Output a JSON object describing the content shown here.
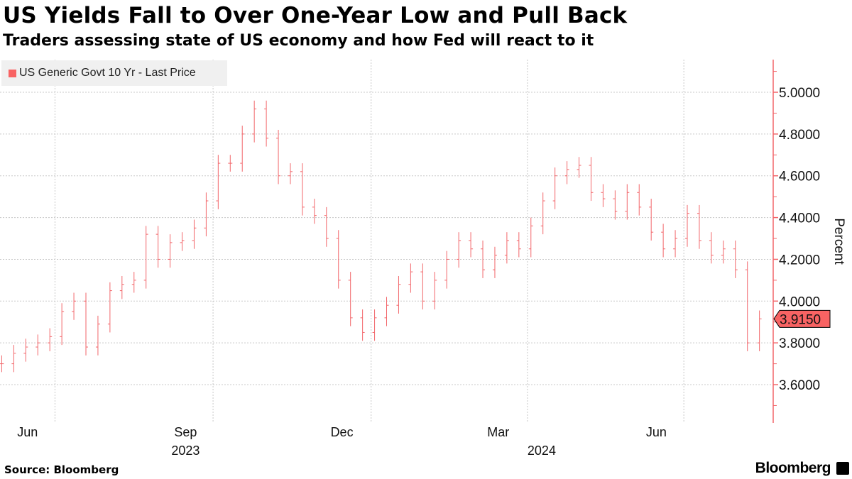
{
  "header": {
    "title": "US Yields Fall to Over One-Year Low and Pull Back",
    "subtitle": "Traders assessing state of US economy and how Fed will react to it"
  },
  "footer": {
    "source": "Source: Bloomberg",
    "brand": "Bloomberg"
  },
  "colors": {
    "series": "#f2666a",
    "last_price_badge": "#f86363",
    "grid": "#c8c8c8"
  },
  "chart_data": {
    "type": "bar",
    "style": "OHLC price bars",
    "title": "US Yields Fall to Over One-Year Low and Pull Back",
    "ylabel": "Percent",
    "ylim": [
      3.45,
      5.15
    ],
    "y_axis_side": "right",
    "yticks": [
      "5.0000",
      "4.8000",
      "4.6000",
      "4.4000",
      "4.2000",
      "4.0000",
      "3.8000",
      "3.6000"
    ],
    "xticks": [
      {
        "label": "Jun",
        "date": "2023-06-15"
      },
      {
        "label": "Sep",
        "date": "2023-09-15"
      },
      {
        "label": "Dec",
        "date": "2023-12-15"
      },
      {
        "label": "Mar",
        "date": "2024-03-15"
      },
      {
        "label": "Jun",
        "date": "2024-06-15"
      }
    ],
    "year_labels": [
      {
        "label": "2023",
        "date": "2023-09-15"
      },
      {
        "label": "2024",
        "date": "2024-04-01"
      }
    ],
    "grid": true,
    "legend": {
      "position": "top-left",
      "entries": [
        "US Generic Govt 10 Yr - Last Price"
      ]
    },
    "last_value_label": "3.9150",
    "series": [
      {
        "name": "US Generic Govt 10 Yr - Last Price",
        "dates": [
          "2023-05-31",
          "2023-06-07",
          "2023-06-14",
          "2023-06-21",
          "2023-06-28",
          "2023-07-05",
          "2023-07-12",
          "2023-07-19",
          "2023-07-26",
          "2023-08-02",
          "2023-08-09",
          "2023-08-16",
          "2023-08-23",
          "2023-08-30",
          "2023-09-06",
          "2023-09-13",
          "2023-09-20",
          "2023-09-27",
          "2023-10-04",
          "2023-10-11",
          "2023-10-18",
          "2023-10-25",
          "2023-11-01",
          "2023-11-08",
          "2023-11-15",
          "2023-11-22",
          "2023-11-29",
          "2023-12-06",
          "2023-12-13",
          "2023-12-20",
          "2023-12-27",
          "2024-01-03",
          "2024-01-10",
          "2024-01-17",
          "2024-01-24",
          "2024-01-31",
          "2024-02-07",
          "2024-02-14",
          "2024-02-21",
          "2024-02-28",
          "2024-03-06",
          "2024-03-13",
          "2024-03-20",
          "2024-03-27",
          "2024-04-03",
          "2024-04-10",
          "2024-04-17",
          "2024-04-24",
          "2024-05-01",
          "2024-05-08",
          "2024-05-15",
          "2024-05-22",
          "2024-05-29",
          "2024-06-05",
          "2024-06-12",
          "2024-06-19",
          "2024-06-26",
          "2024-07-03",
          "2024-07-10",
          "2024-07-17",
          "2024-07-24",
          "2024-07-31",
          "2024-08-07",
          "2024-08-14"
        ],
        "values": [
          3.7,
          3.75,
          3.78,
          3.8,
          3.83,
          3.95,
          4.0,
          3.78,
          3.89,
          4.05,
          4.08,
          4.1,
          4.32,
          4.2,
          4.28,
          4.29,
          4.35,
          4.48,
          4.66,
          4.66,
          4.8,
          4.92,
          4.78,
          4.6,
          4.62,
          4.45,
          4.41,
          4.3,
          4.1,
          3.92,
          3.85,
          3.92,
          3.98,
          4.08,
          4.14,
          4.0,
          4.1,
          4.2,
          4.29,
          4.25,
          4.15,
          4.22,
          4.29,
          4.25,
          4.36,
          4.48,
          4.6,
          4.63,
          4.65,
          4.52,
          4.49,
          4.43,
          4.52,
          4.45,
          4.33,
          4.25,
          4.3,
          4.42,
          4.29,
          4.22,
          4.25,
          4.15,
          3.8,
          3.915
        ]
      }
    ]
  }
}
